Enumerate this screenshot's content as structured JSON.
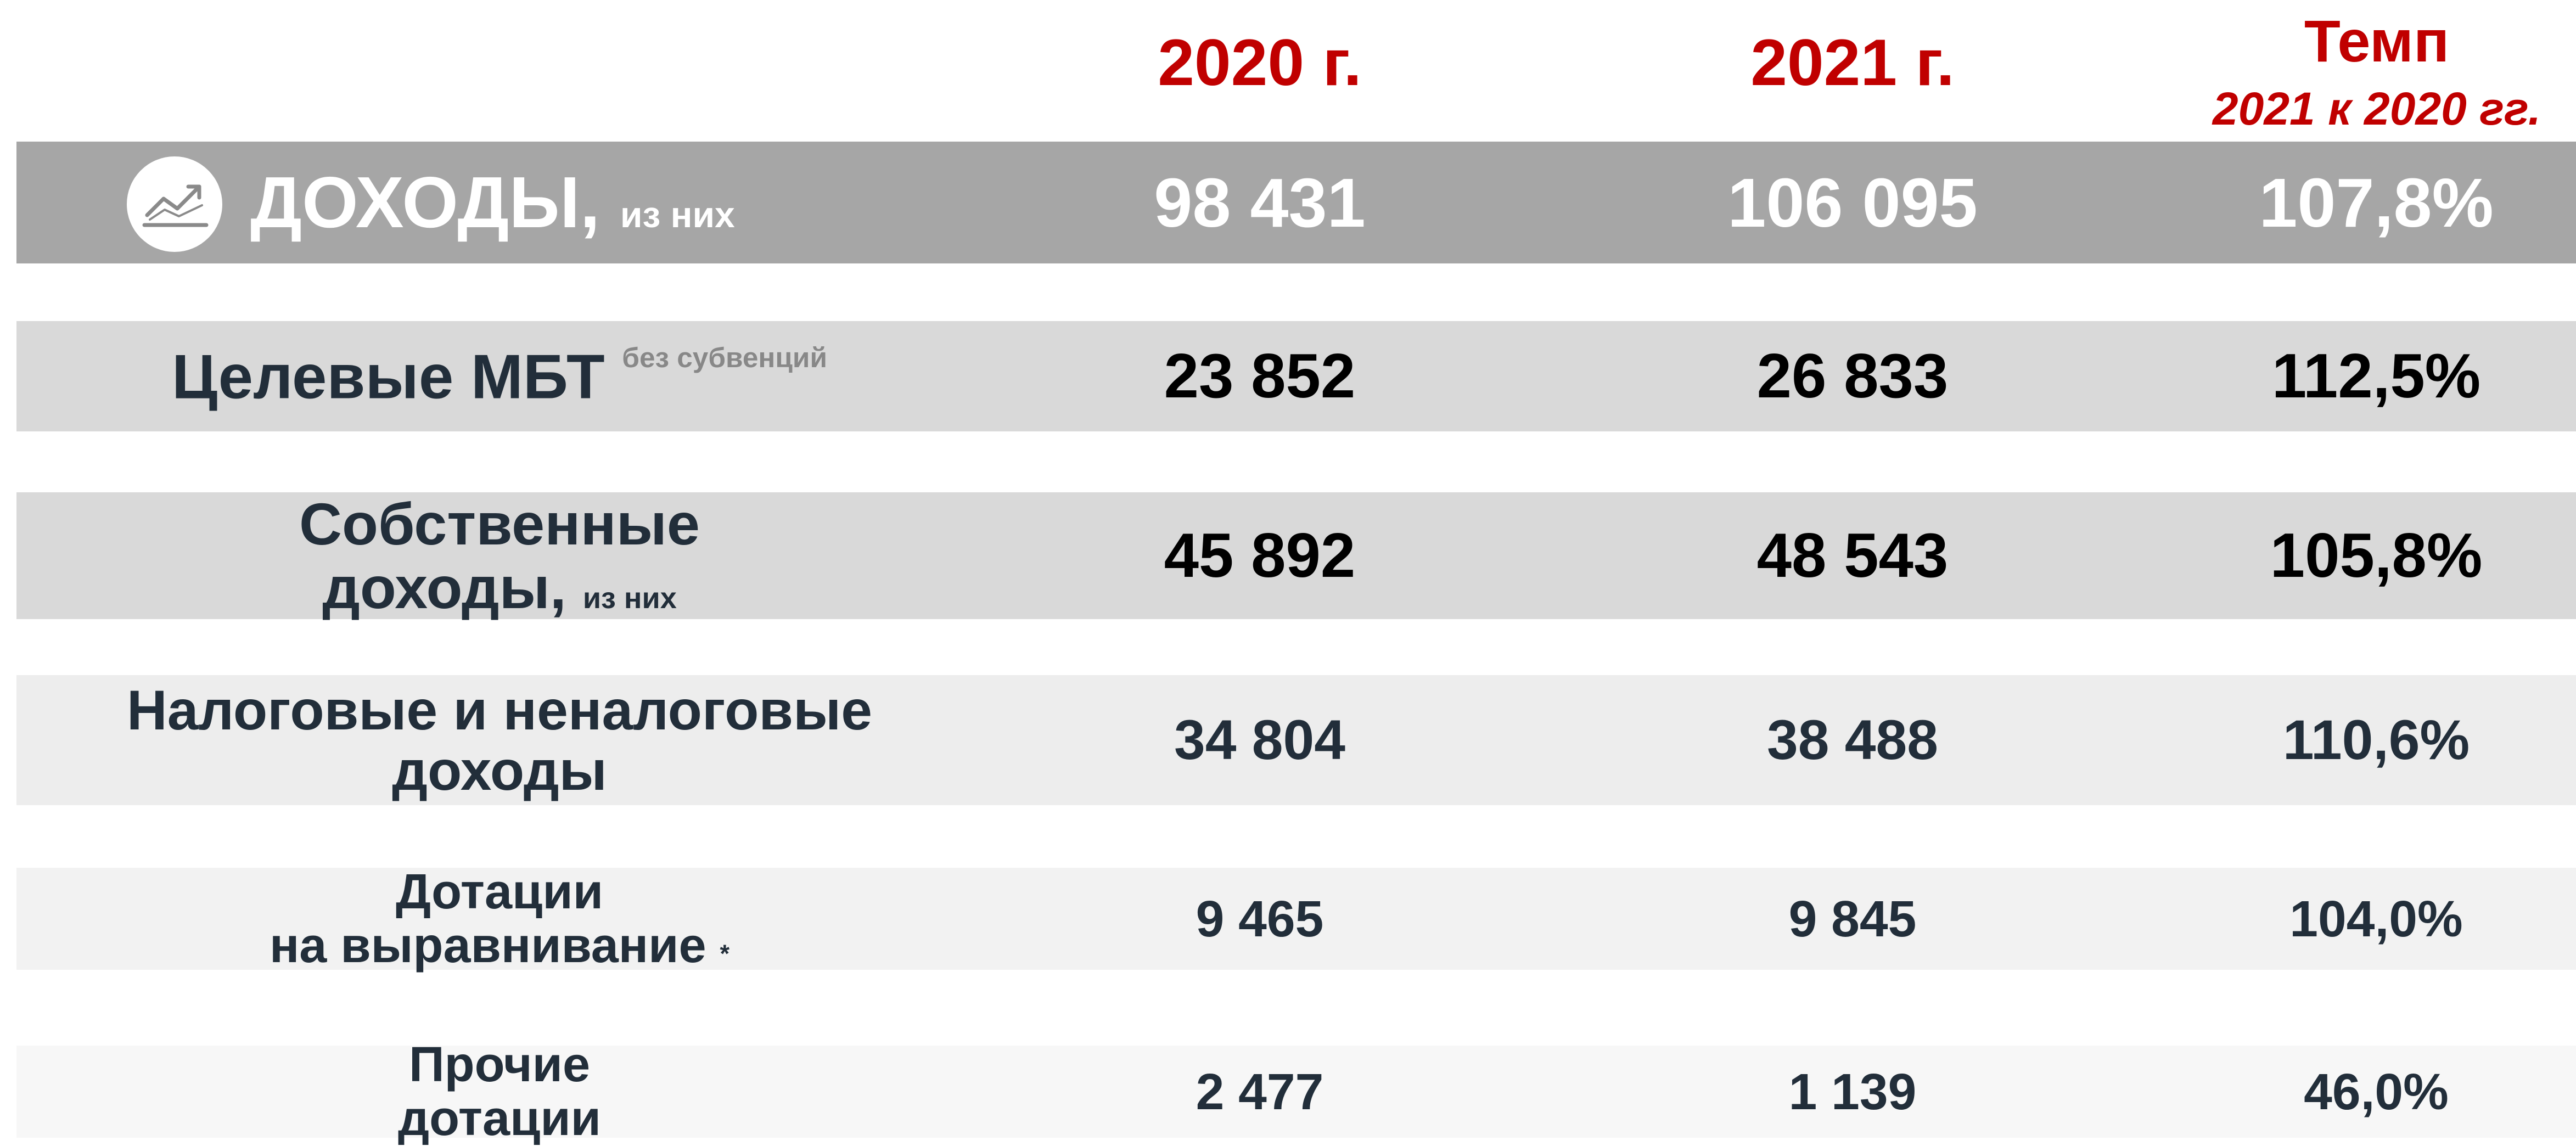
{
  "header": {
    "columns": [
      "2020 г.",
      "2021 г.",
      "Темп"
    ],
    "rate_subtitle": "2021 к 2020 гг."
  },
  "rows": [
    {
      "label_lines": [
        "ДОХОДЫ,"
      ],
      "note": "из них",
      "values": [
        "98 431",
        "106 095",
        "107,8%"
      ]
    },
    {
      "label_lines": [
        "Целевые МБТ"
      ],
      "note": "без субвенций",
      "values": [
        "23 852",
        "26 833",
        "112,5%"
      ]
    },
    {
      "label_lines": [
        "Собственные",
        "доходы,"
      ],
      "note": "из них",
      "values": [
        "45 892",
        "48 543",
        "105,8%"
      ]
    },
    {
      "label_lines": [
        "Налоговые и неналоговые",
        "доходы"
      ],
      "values": [
        "34 804",
        "38 488",
        "110,6%"
      ]
    },
    {
      "label_lines": [
        "Дотации",
        "на выравнивание"
      ],
      "note": "*",
      "values": [
        "9 465",
        "9 845",
        "104,0%"
      ]
    },
    {
      "label_lines": [
        "Прочие",
        "дотации"
      ],
      "values": [
        "2 477",
        "1 139",
        "46,0%"
      ]
    }
  ]
}
